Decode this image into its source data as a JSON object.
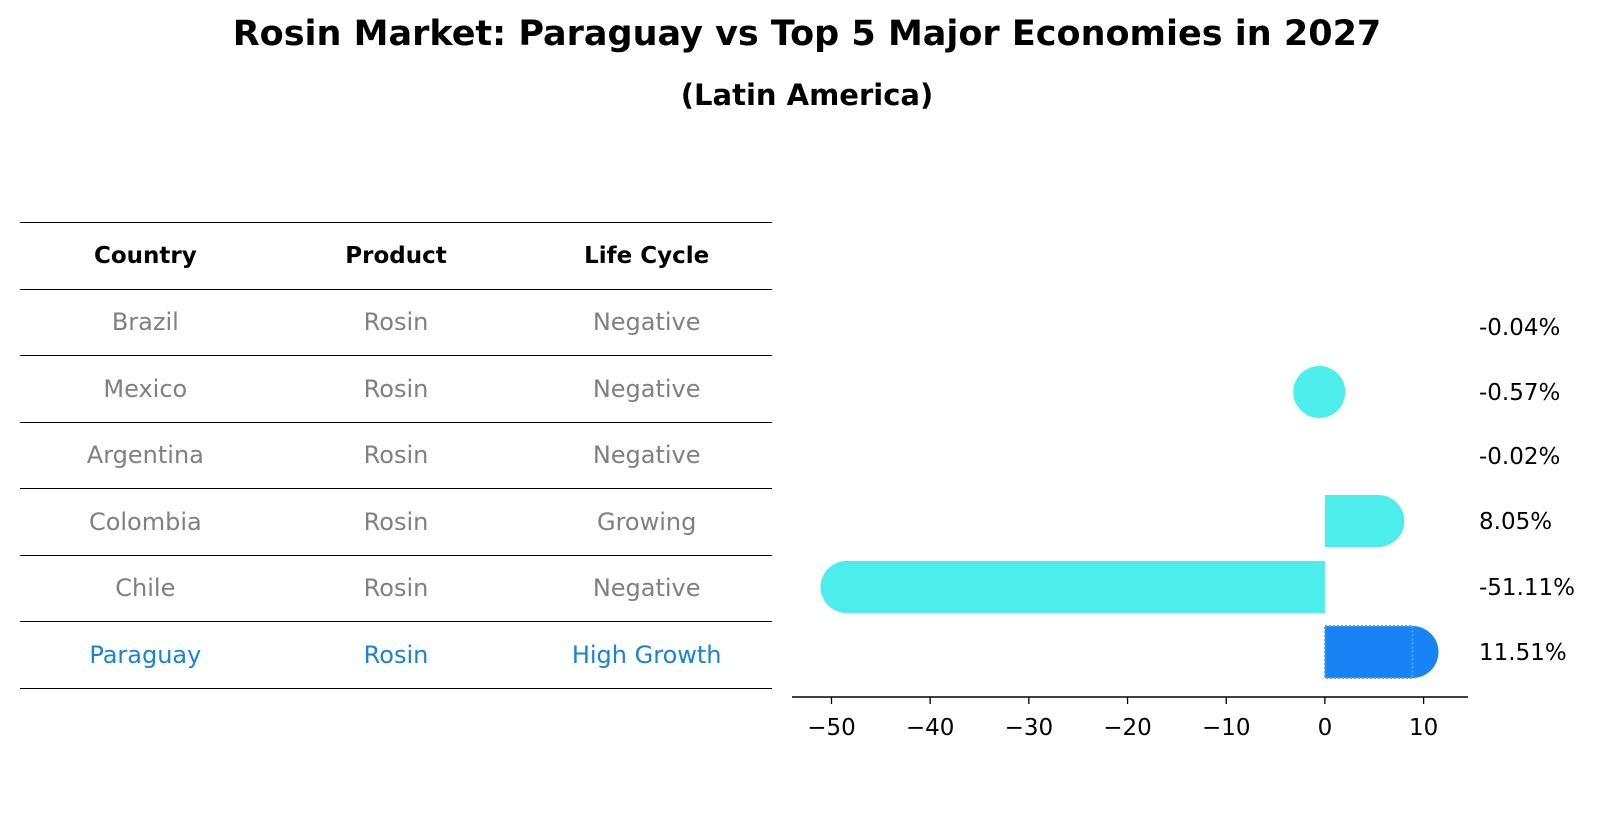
{
  "chart_data": {
    "type": "bar",
    "orientation": "horizontal",
    "title": "Rosin Market: Paraguay vs Top 5 Major Economies in 2027",
    "subtitle": "(Latin America)",
    "table": {
      "columns": [
        "Country",
        "Product",
        "Life Cycle"
      ],
      "rows": [
        {
          "country": "Brazil",
          "product": "Rosin",
          "life_cycle": "Negative"
        },
        {
          "country": "Mexico",
          "product": "Rosin",
          "life_cycle": "Negative"
        },
        {
          "country": "Argentina",
          "product": "Rosin",
          "life_cycle": "Negative"
        },
        {
          "country": "Colombia",
          "product": "Rosin",
          "life_cycle": "Growing"
        },
        {
          "country": "Chile",
          "product": "Rosin",
          "life_cycle": "Negative"
        },
        {
          "country": "Paraguay",
          "product": "Rosin",
          "life_cycle": "High Growth",
          "highlight": true
        }
      ]
    },
    "categories": [
      "Brazil",
      "Mexico",
      "Argentina",
      "Colombia",
      "Chile",
      "Paraguay"
    ],
    "values": [
      -0.04,
      -0.57,
      -0.02,
      8.05,
      -51.11,
      11.51
    ],
    "value_labels": [
      "-0.04%",
      "-0.57%",
      "-0.02%",
      "8.05%",
      "-51.11%",
      "11.51%"
    ],
    "xlim": [
      -54,
      14.5
    ],
    "xticks": [
      -50,
      -40,
      -30,
      -20,
      -10,
      0,
      10
    ],
    "xtick_labels": [
      "−50",
      "−40",
      "−30",
      "−20",
      "−10",
      "0",
      "10"
    ],
    "colors": {
      "bar": "#4dedeb",
      "highlight_bar": "#1783f5",
      "table_text": "#808080",
      "highlight_text": "#1a83d8"
    }
  }
}
